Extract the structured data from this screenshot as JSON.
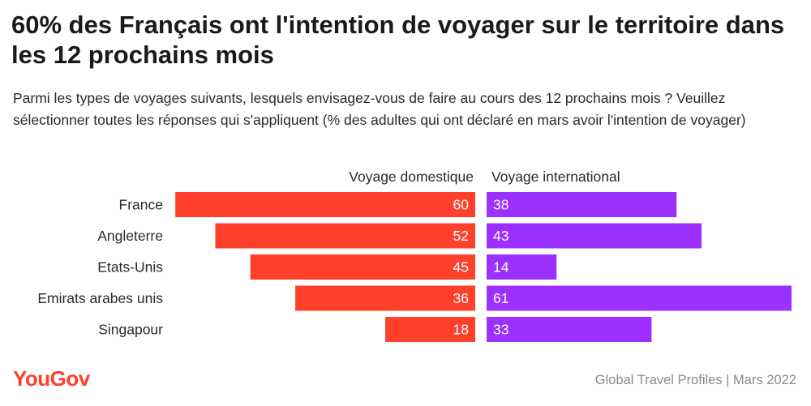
{
  "header": {
    "title": "60% des Français ont l'intention de voyager sur le territoire dans les 12 prochains mois",
    "subtitle": "Parmi les types de voyages suivants, lesquels envisagez-vous de faire au cours des 12 prochains mois ? Veuillez sélectionner toutes les réponses qui s'appliquent (% des adultes qui ont déclaré en mars avoir l'intention de voyager)"
  },
  "footer": {
    "brand": "YouGov",
    "source": "Global Travel Profiles | Mars 2022"
  },
  "colors": {
    "domestic": "#ff412c",
    "international": "#9b30ff"
  },
  "chart_data": {
    "type": "bar",
    "orientation": "horizontal-diverging",
    "categories": [
      "France",
      "Angleterre",
      "Etats-Unis",
      "Emirats arabes unis",
      "Singapour"
    ],
    "series": [
      {
        "name": "Voyage domestique",
        "values": [
          60,
          52,
          45,
          36,
          18
        ],
        "color": "#ff412c"
      },
      {
        "name": "Voyage international",
        "values": [
          38,
          43,
          14,
          61,
          33
        ],
        "color": "#9b30ff"
      }
    ],
    "xlim": [
      0,
      61
    ],
    "grid": false,
    "legend": "top"
  }
}
